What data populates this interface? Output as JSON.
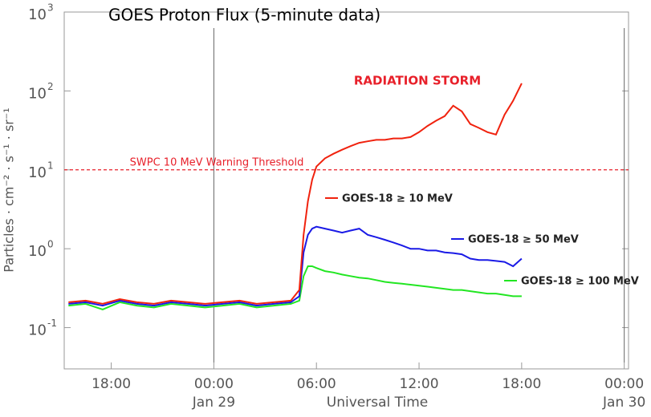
{
  "chart_data": {
    "type": "line",
    "title": "GOES Proton Flux (5-minute data)",
    "xlabel": "Universal Time",
    "ylabel": "Particles · cm⁻² · s⁻¹ · sr⁻¹",
    "annotation": {
      "text": "RADIATION STORM",
      "color": "#e8202a"
    },
    "threshold": {
      "value": 10,
      "label": "SWPC 10 MeV Warning Threshold",
      "color": "#e8202a"
    },
    "log_y": true,
    "xlim": [
      -8.75,
      24.25
    ],
    "xticks": [
      {
        "value": -6,
        "label": "18:00"
      },
      {
        "value": 0,
        "label": "00:00",
        "date": "Jan 29"
      },
      {
        "value": 6,
        "label": "06:00"
      },
      {
        "value": 12,
        "label": "12:00"
      },
      {
        "value": 18,
        "label": "18:00"
      },
      {
        "value": 24,
        "label": "00:00",
        "date": "Jan 30"
      }
    ],
    "ylim": [
      0.03,
      1000
    ],
    "yticks": [
      {
        "value": 0.1,
        "label": "10",
        "exponent": "-1"
      },
      {
        "value": 1,
        "label": "10",
        "exponent": "0"
      },
      {
        "value": 10,
        "label": "10",
        "exponent": "1"
      },
      {
        "value": 100,
        "label": "10",
        "exponent": "2"
      },
      {
        "value": 1000,
        "label": "10",
        "exponent": "3"
      }
    ],
    "x": [
      -8.5,
      -7.5,
      -6.5,
      -5.5,
      -4.5,
      -3.5,
      -2.5,
      -1.5,
      -0.5,
      0.5,
      1.5,
      2.5,
      3.5,
      4.5,
      5,
      5.25,
      5.5,
      5.75,
      6,
      6.5,
      7,
      7.5,
      8,
      8.5,
      9,
      9.5,
      10,
      10.5,
      11,
      11.5,
      12,
      12.5,
      13,
      13.5,
      14,
      14.5,
      15,
      15.5,
      16,
      16.5,
      17,
      17.5,
      18
    ],
    "series": [
      {
        "name": "GOES-18 ≥ 10 MeV",
        "color": "#f0220e",
        "values": [
          0.21,
          0.22,
          0.2,
          0.23,
          0.21,
          0.2,
          0.22,
          0.21,
          0.2,
          0.21,
          0.22,
          0.2,
          0.21,
          0.22,
          0.3,
          1.5,
          4,
          7.5,
          11,
          14,
          16,
          18,
          20,
          22,
          23,
          24,
          24,
          25,
          25,
          26,
          30,
          36,
          42,
          48,
          65,
          55,
          38,
          34,
          30,
          28,
          50,
          75,
          125
        ]
      },
      {
        "name": "GOES-18 ≥ 50 MeV",
        "color": "#1a1ae6",
        "values": [
          0.2,
          0.21,
          0.19,
          0.22,
          0.2,
          0.19,
          0.21,
          0.2,
          0.19,
          0.2,
          0.21,
          0.19,
          0.2,
          0.21,
          0.25,
          0.9,
          1.5,
          1.8,
          1.9,
          1.8,
          1.7,
          1.6,
          1.7,
          1.8,
          1.5,
          1.4,
          1.3,
          1.2,
          1.1,
          1.0,
          1.0,
          0.95,
          0.95,
          0.9,
          0.88,
          0.85,
          0.75,
          0.72,
          0.72,
          0.7,
          0.68,
          0.6,
          0.75
        ]
      },
      {
        "name": "GOES-18 ≥ 100 MeV",
        "color": "#22e622",
        "values": [
          0.19,
          0.2,
          0.17,
          0.21,
          0.19,
          0.18,
          0.2,
          0.19,
          0.18,
          0.19,
          0.2,
          0.18,
          0.19,
          0.2,
          0.22,
          0.45,
          0.6,
          0.6,
          0.57,
          0.52,
          0.5,
          0.47,
          0.45,
          0.43,
          0.42,
          0.4,
          0.38,
          0.37,
          0.36,
          0.35,
          0.34,
          0.33,
          0.32,
          0.31,
          0.3,
          0.3,
          0.29,
          0.28,
          0.27,
          0.27,
          0.26,
          0.25,
          0.25
        ]
      }
    ]
  }
}
